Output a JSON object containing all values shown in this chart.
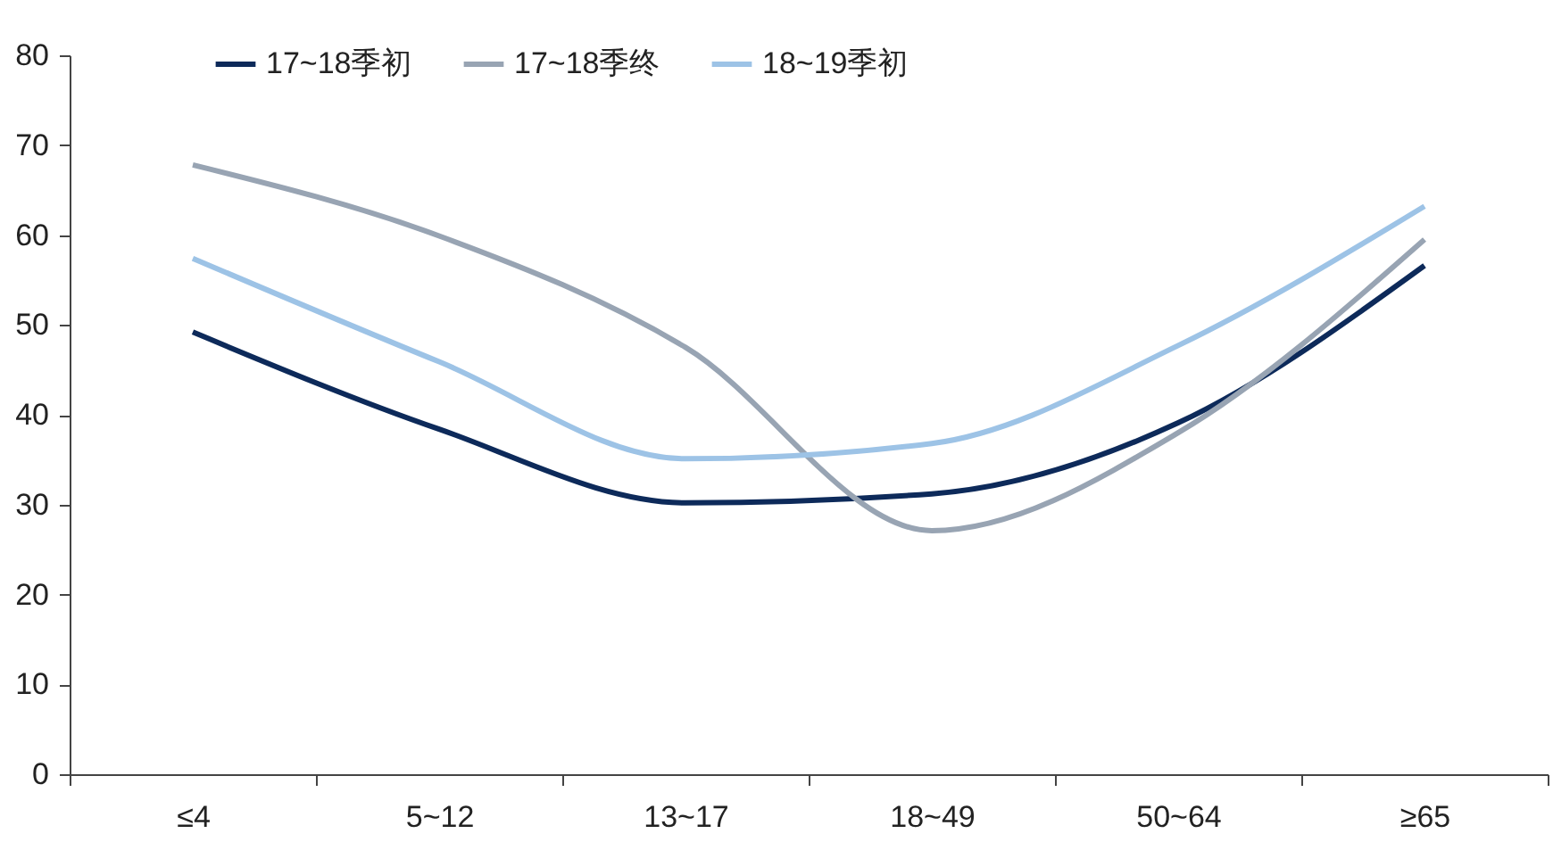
{
  "chart_data": {
    "type": "line",
    "categories": [
      "≤4",
      "5~12",
      "13~17",
      "18~49",
      "50~64",
      "≥65"
    ],
    "series": [
      {
        "name": "17~18季初",
        "color": "#0d2a5a",
        "values": [
          49.2,
          38.4,
          30.2,
          31.2,
          39.1,
          56.6
        ]
      },
      {
        "name": "17~18季终",
        "color": "#98a4b3",
        "values": [
          67.8,
          59.9,
          47.5,
          27.1,
          38,
          59.5
        ]
      },
      {
        "name": "18~19季初",
        "color": "#9dc3e6",
        "values": [
          57.4,
          45.9,
          35.1,
          36.8,
          47.7,
          63.2
        ]
      }
    ],
    "ylim": [
      0,
      80
    ],
    "yticks": [
      0,
      10,
      20,
      30,
      40,
      50,
      60,
      70,
      80
    ],
    "grid": false,
    "legend": "top",
    "marker": "none",
    "line_style": "solid"
  }
}
